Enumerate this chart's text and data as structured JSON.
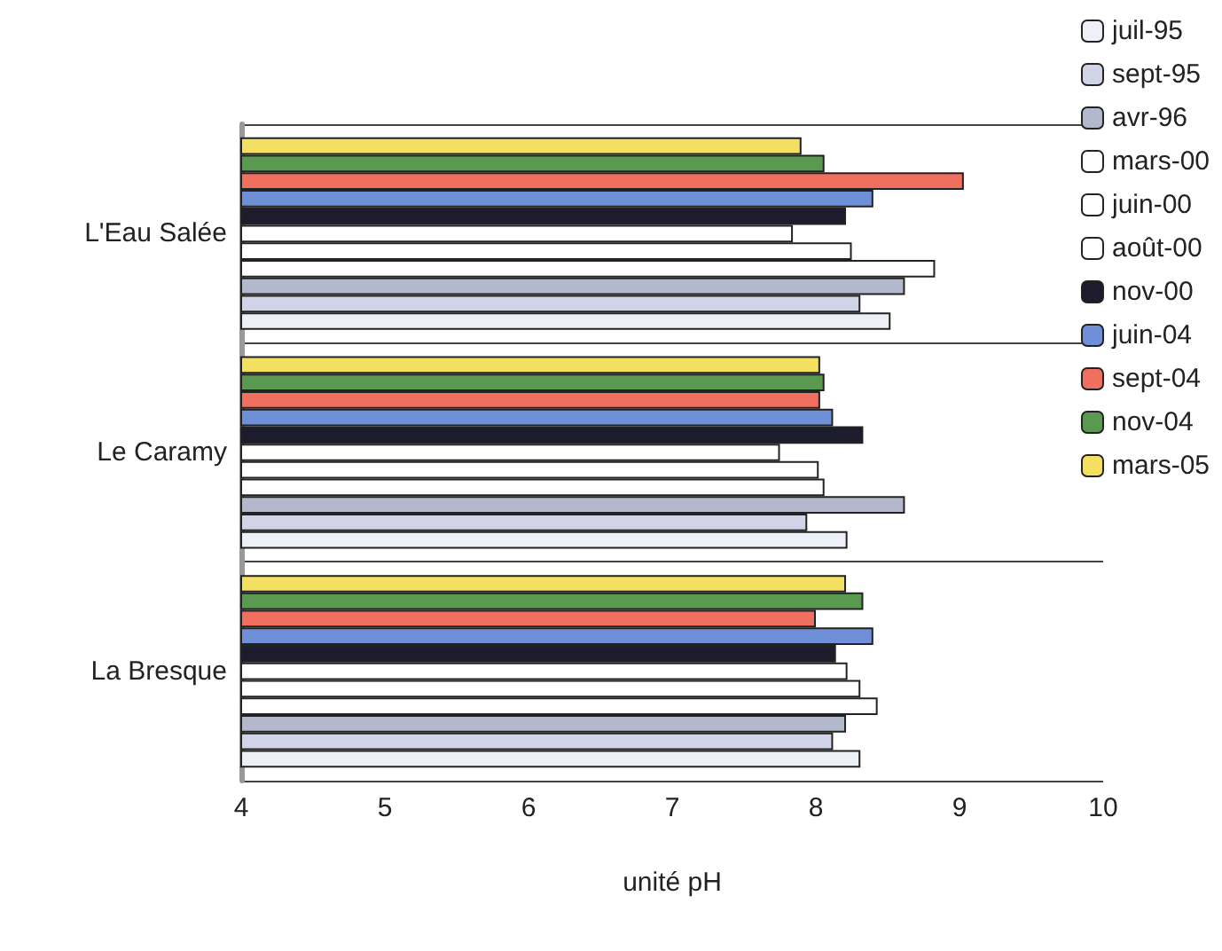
{
  "chart_data": {
    "type": "bar",
    "orientation": "horizontal",
    "xlabel": "unité pH",
    "categories": [
      "L'Eau Salée",
      "Le Caramy",
      "La Bresque"
    ],
    "series": [
      {
        "name": "juil-95",
        "color": "#eef0f8",
        "values": [
          8.52,
          8.22,
          8.31
        ]
      },
      {
        "name": "sept-95",
        "color": "#d0d4e6",
        "values": [
          8.31,
          7.94,
          8.12
        ]
      },
      {
        "name": "avr-96",
        "color": "#b4b8cc",
        "values": [
          8.62,
          8.62,
          8.21
        ]
      },
      {
        "name": "mars-00",
        "color": "#ffffff",
        "values": [
          8.83,
          8.06,
          8.43
        ]
      },
      {
        "name": "juin-00",
        "color": "#ffffff",
        "values": [
          8.25,
          8.02,
          8.31
        ]
      },
      {
        "name": "août-00",
        "color": "#ffffff",
        "values": [
          7.84,
          7.75,
          8.22
        ]
      },
      {
        "name": "nov-00",
        "color": "#1c1c2c",
        "values": [
          8.21,
          8.33,
          8.14
        ]
      },
      {
        "name": "juin-04",
        "color": "#6f8fd8",
        "values": [
          8.4,
          8.12,
          8.4
        ]
      },
      {
        "name": "sept-04",
        "color": "#f07060",
        "values": [
          9.03,
          8.03,
          8.0
        ]
      },
      {
        "name": "nov-04",
        "color": "#5a9a50",
        "values": [
          8.06,
          8.06,
          8.33
        ]
      },
      {
        "name": "mars-05",
        "color": "#f4e060",
        "values": [
          7.9,
          8.03,
          8.21
        ]
      }
    ],
    "xlim": [
      4,
      10
    ],
    "xticks": [
      4,
      5,
      6,
      7,
      8,
      9,
      10
    ],
    "grid": "y",
    "legend": "right"
  }
}
